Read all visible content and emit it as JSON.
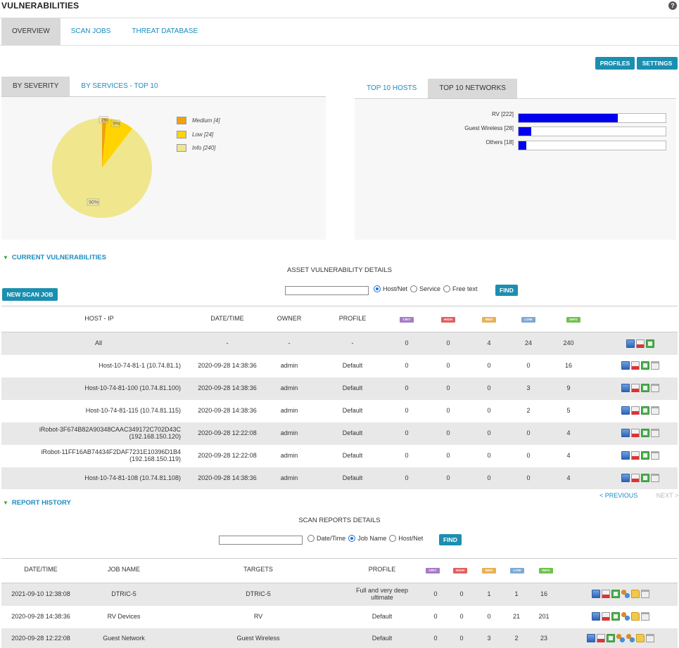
{
  "page": {
    "title": "VULNERABILITIES",
    "help": "?"
  },
  "tabs": [
    "OVERVIEW",
    "SCAN JOBS",
    "THREAT DATABASE"
  ],
  "toolbar": {
    "profiles": "PROFILES",
    "settings": "SETTINGS"
  },
  "left_panel": {
    "tabs": [
      "BY SEVERITY",
      "BY SERVICES - TOP 10"
    ],
    "legend": [
      "Medium [4]",
      "Low [24]",
      "Info [240]"
    ],
    "pie_labels": [
      "1%",
      "9%",
      "90%"
    ]
  },
  "right_panel": {
    "tabs": [
      "TOP 10 HOSTS",
      "TOP 10 NETWORKS"
    ],
    "bars": [
      {
        "label": "RV [222]",
        "value": 222
      },
      {
        "label": "Guest Wireless [28]",
        "value": 28
      },
      {
        "label": "Others [18]",
        "value": 18
      }
    ]
  },
  "chart_data": [
    {
      "type": "pie",
      "slices": [
        {
          "name": "Medium",
          "value": 4,
          "label": "1%",
          "color": "#f0a30a"
        },
        {
          "name": "Low",
          "value": 24,
          "label": "9%",
          "color": "#ffd400"
        },
        {
          "name": "Info",
          "value": 240,
          "label": "90%",
          "color": "#efe68e"
        }
      ],
      "legend_position": "right"
    },
    {
      "type": "bar",
      "orientation": "horizontal",
      "categories": [
        "RV",
        "Guest Wireless",
        "Others"
      ],
      "values": [
        222,
        28,
        18
      ],
      "color": "#0000ee"
    }
  ],
  "current": {
    "title": "CURRENT VULNERABILITIES",
    "caption": "ASSET VULNERABILITY DETAILS",
    "new_scan": "NEW SCAN JOB",
    "search_value": "",
    "radios": [
      "Host/Net",
      "Service",
      "Free text"
    ],
    "find": "FIND",
    "headers": [
      "HOST - IP",
      "DATE/TIME",
      "OWNER",
      "PROFILE"
    ],
    "severity_badges": [
      "CRIT",
      "HIGH",
      "MED",
      "LOW",
      "INFO"
    ],
    "rows": [
      {
        "host": "All",
        "date": "-",
        "owner": "-",
        "profile": "-",
        "crit": "0",
        "high": "0",
        "med": "4",
        "low": "24",
        "info": "240"
      },
      {
        "host": "Host-10-74-81-1 (10.74.81.1)",
        "date": "2020-09-28 14:38:36",
        "owner": "admin",
        "profile": "Default",
        "crit": "0",
        "high": "0",
        "med": "0",
        "low": "0",
        "info": "16"
      },
      {
        "host": "Host-10-74-81-100 (10.74.81.100)",
        "date": "2020-09-28 14:38:36",
        "owner": "admin",
        "profile": "Default",
        "crit": "0",
        "high": "0",
        "med": "0",
        "low": "3",
        "info": "9"
      },
      {
        "host": "Host-10-74-81-115 (10.74.81.115)",
        "date": "2020-09-28 14:38:36",
        "owner": "admin",
        "profile": "Default",
        "crit": "0",
        "high": "0",
        "med": "0",
        "low": "2",
        "info": "5"
      },
      {
        "host": "iRobot-3F674B82A90348CAAC349172C702D43C",
        "host2": "(192.168.150.120)",
        "date": "2020-09-28 12:22:08",
        "owner": "admin",
        "profile": "Default",
        "crit": "0",
        "high": "0",
        "med": "0",
        "low": "0",
        "info": "4"
      },
      {
        "host": "iRobot-11FF16AB74434F2DAF7231E10396D1B4",
        "host2": "(192.168.150.119)",
        "date": "2020-09-28 12:22:08",
        "owner": "admin",
        "profile": "Default",
        "crit": "0",
        "high": "0",
        "med": "0",
        "low": "0",
        "info": "4"
      },
      {
        "host": "Host-10-74-81-108 (10.74.81.108)",
        "date": "2020-09-28 14:38:36",
        "owner": "admin",
        "profile": "Default",
        "crit": "0",
        "high": "0",
        "med": "0",
        "low": "0",
        "info": "4"
      }
    ],
    "prev": "< PREVIOUS",
    "next": "NEXT >"
  },
  "history": {
    "title": "REPORT HISTORY",
    "caption": "SCAN REPORTS DETAILS",
    "search_value": "",
    "radios": [
      "Date/Time",
      "Job Name",
      "Host/Net"
    ],
    "find": "FIND",
    "headers": [
      "DATE/TIME",
      "JOB NAME",
      "TARGETS",
      "PROFILE"
    ],
    "rows": [
      {
        "date": "2021-09-10 12:38:08",
        "job": "DTRIC-5",
        "targets": "DTRIC-5",
        "profile": "Full and very deep",
        "profile2": "ultimate",
        "crit": "0",
        "high": "0",
        "med": "1",
        "low": "1",
        "info": "16"
      },
      {
        "date": "2020-09-28 14:38:36",
        "job": "RV Devices",
        "targets": "RV",
        "profile": "Default",
        "crit": "0",
        "high": "0",
        "med": "0",
        "low": "21",
        "info": "201"
      },
      {
        "date": "2020-09-28 12:22:08",
        "job": "Guest Network",
        "targets": "Guest Wireless",
        "profile": "Default",
        "crit": "0",
        "high": "0",
        "med": "3",
        "low": "2",
        "info": "23"
      }
    ]
  }
}
